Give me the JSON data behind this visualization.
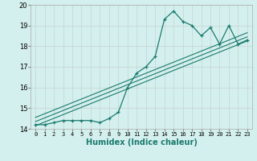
{
  "xlabel": "Humidex (Indice chaleur)",
  "bg_color": "#d4f0ee",
  "grid_color": "#c8d8d4",
  "line_color": "#1a7a6e",
  "xlim": [
    -0.5,
    23.5
  ],
  "ylim": [
    14,
    20
  ],
  "xticks": [
    0,
    1,
    2,
    3,
    4,
    5,
    6,
    7,
    8,
    9,
    10,
    11,
    12,
    13,
    14,
    15,
    16,
    17,
    18,
    19,
    20,
    21,
    22,
    23
  ],
  "yticks": [
    14,
    15,
    16,
    17,
    18,
    19,
    20
  ],
  "main_x": [
    0,
    1,
    2,
    3,
    4,
    5,
    6,
    7,
    8,
    9,
    10,
    11,
    12,
    13,
    14,
    15,
    16,
    17,
    18,
    19,
    20,
    21,
    22,
    23
  ],
  "main_y": [
    14.2,
    14.2,
    14.3,
    14.4,
    14.4,
    14.4,
    14.4,
    14.3,
    14.5,
    14.8,
    16.0,
    16.7,
    17.0,
    17.5,
    19.3,
    19.7,
    19.2,
    19.0,
    18.5,
    18.9,
    18.1,
    19.0,
    18.1,
    18.3
  ],
  "line1_x": [
    0,
    23
  ],
  "line1_y": [
    14.15,
    18.25
  ],
  "line2_x": [
    0,
    23
  ],
  "line2_y": [
    14.35,
    18.45
  ],
  "line3_x": [
    0,
    23
  ],
  "line3_y": [
    14.55,
    18.65
  ]
}
